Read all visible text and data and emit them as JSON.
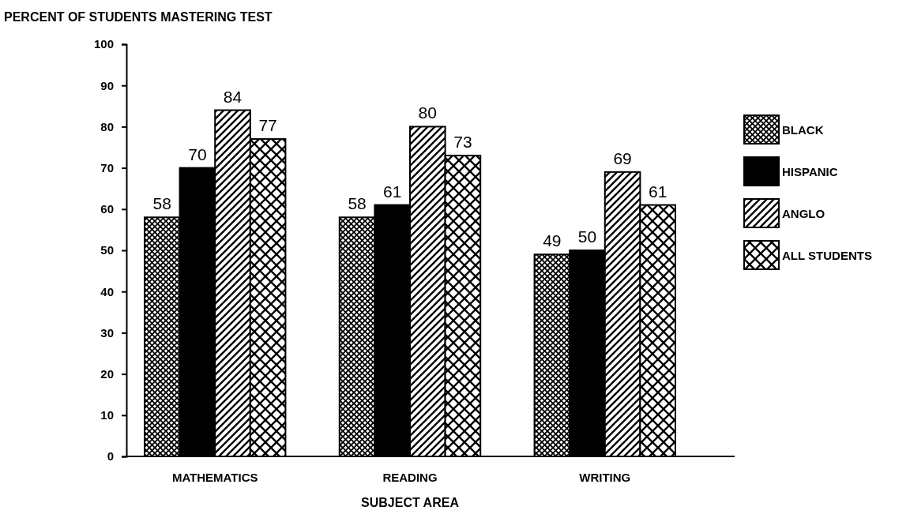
{
  "chart_data": {
    "type": "bar",
    "ylabel": "PERCENT OF STUDENTS MASTERING TEST",
    "xlabel": "SUBJECT AREA",
    "categories": [
      "MATHEMATICS",
      "READING",
      "WRITING"
    ],
    "series": [
      {
        "name": "BLACK",
        "color": "#000000",
        "values": [
          58,
          58,
          49
        ]
      },
      {
        "name": "HISPANIC",
        "color": "#000000",
        "values": [
          70,
          61,
          50
        ]
      },
      {
        "name": "ANGLO",
        "color": "#000000",
        "values": [
          84,
          80,
          69
        ]
      },
      {
        "name": "ALL STUDENTS",
        "color": "#000000",
        "values": [
          77,
          73,
          61
        ]
      }
    ],
    "ylim": [
      0,
      100
    ],
    "yticks": [
      0,
      10,
      20,
      30,
      40,
      50,
      60,
      70,
      80,
      90,
      100
    ],
    "data_labels": true,
    "legend": "right",
    "grid": false
  }
}
